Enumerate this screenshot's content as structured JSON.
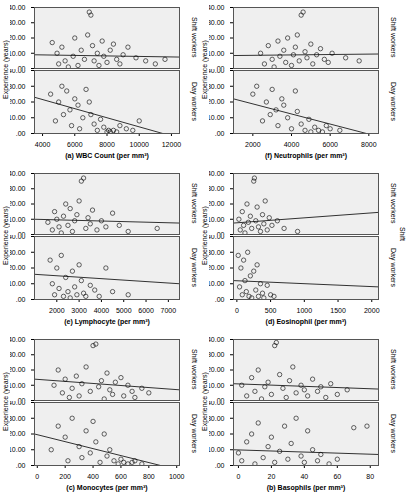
{
  "chart_data": [
    {
      "type": "scatter",
      "x_label": "(a) WBC Count (per mm³)",
      "y_label": "Experience (years)",
      "xlim": [
        3500,
        12500
      ],
      "xticks": [
        4000,
        6000,
        8000,
        10000,
        12000
      ],
      "ylim": [
        0,
        40
      ],
      "yticks": [
        {
          "value": 0,
          "label": ".00"
        },
        {
          "value": 10,
          "label": "10.00"
        },
        {
          "value": 20,
          "label": "20.00"
        },
        {
          "value": 30,
          "label": "30.00"
        },
        {
          "value": 40,
          "label": "40.00"
        }
      ],
      "color": "#000000",
      "marker": "circle",
      "series": [
        {
          "name": "Shift workers",
          "x": [
            4600,
            4900,
            5000,
            5200,
            5400,
            5600,
            5900,
            6000,
            6200,
            6400,
            6600,
            6800,
            6900,
            7000,
            7100,
            7200,
            7400,
            7500,
            7700,
            7800,
            8000,
            8200,
            8400,
            8600,
            8800,
            9000,
            9300,
            9800,
            10400,
            11000,
            11600
          ],
          "y": [
            17,
            10,
            3,
            14,
            5,
            1,
            8,
            20,
            2,
            12,
            6,
            22,
            37,
            35,
            15,
            5,
            10,
            2,
            18,
            8,
            4,
            12,
            16,
            6,
            3,
            9,
            14,
            7,
            5,
            3,
            6
          ],
          "fit_x": [
            3500,
            12500
          ],
          "fit_y": [
            9,
            7.5
          ]
        },
        {
          "name": "Day workers",
          "x": [
            4500,
            4800,
            5000,
            5200,
            5300,
            5500,
            5700,
            5800,
            6000,
            6200,
            6300,
            6500,
            6700,
            6900,
            7000,
            7200,
            7400,
            7600,
            7800,
            8000,
            8100,
            8200,
            8400,
            8600,
            8800,
            9200,
            9600,
            10000
          ],
          "y": [
            25,
            8,
            20,
            30,
            12,
            27,
            15,
            5,
            22,
            18,
            3,
            10,
            28,
            20,
            12,
            6,
            2,
            9,
            4,
            1,
            2,
            1,
            2,
            1,
            5,
            3,
            2,
            8
          ],
          "fit_x": [
            3500,
            12500
          ],
          "fit_y": [
            23,
            -3
          ]
        }
      ]
    },
    {
      "type": "scatter",
      "x_label": "(f) Neutrophils (per mm³)",
      "y_label": "Experience (years)",
      "xlim": [
        1000,
        8500
      ],
      "xticks": [
        2000,
        4000,
        6000,
        8000
      ],
      "ylim": [
        0,
        40
      ],
      "yticks": [
        {
          "value": 0,
          "label": ".00"
        },
        {
          "value": 10,
          "label": "10.00"
        },
        {
          "value": 20,
          "label": "20.00"
        },
        {
          "value": 30,
          "label": "30.00"
        },
        {
          "value": 40,
          "label": "40.00"
        }
      ],
      "color": "#000000",
      "marker": "circle",
      "series": [
        {
          "name": "Shift workers",
          "x": [
            2400,
            2600,
            2800,
            3000,
            3100,
            3300,
            3400,
            3600,
            3700,
            3800,
            4000,
            4100,
            4200,
            4300,
            4400,
            4500,
            4600,
            4700,
            4800,
            5000,
            5100,
            5300,
            5500,
            5700,
            5900,
            6100,
            6800,
            7500
          ],
          "y": [
            10,
            3,
            15,
            6,
            1,
            18,
            8,
            12,
            4,
            20,
            2,
            9,
            14,
            22,
            5,
            35,
            37,
            11,
            7,
            16,
            3,
            9,
            13,
            6,
            4,
            10,
            7,
            5
          ],
          "fit_x": [
            1000,
            8500
          ],
          "fit_y": [
            8.5,
            9.5
          ]
        },
        {
          "name": "Day workers",
          "x": [
            2000,
            2200,
            2500,
            2700,
            2900,
            3000,
            3200,
            3300,
            3500,
            3600,
            3800,
            4000,
            4200,
            4300,
            4500,
            4700,
            4900,
            5000,
            5200,
            5400,
            5600,
            5800,
            6000,
            6500
          ],
          "y": [
            25,
            30,
            8,
            20,
            12,
            28,
            15,
            5,
            22,
            18,
            10,
            3,
            27,
            14,
            6,
            2,
            9,
            1,
            4,
            2,
            1,
            5,
            3,
            2
          ],
          "fit_x": [
            1000,
            8500
          ],
          "fit_y": [
            22,
            -2
          ]
        }
      ]
    },
    {
      "type": "scatter",
      "x_label": "(e) Lymphocyte (per mm³)",
      "y_label": "Experience (years)",
      "xlim": [
        1000,
        7500
      ],
      "xticks": [
        2000,
        3000,
        4000,
        5000,
        6000,
        7000
      ],
      "ylim": [
        0,
        40
      ],
      "yticks": [
        {
          "value": 0,
          "label": ".00"
        },
        {
          "value": 10,
          "label": "10.00"
        },
        {
          "value": 20,
          "label": "20.00"
        },
        {
          "value": 30,
          "label": "30.00"
        },
        {
          "value": 40,
          "label": "40.00"
        }
      ],
      "color": "#000000",
      "marker": "circle",
      "series": [
        {
          "name": "Shift workers",
          "x": [
            1600,
            1800,
            1900,
            2000,
            2100,
            2200,
            2300,
            2400,
            2500,
            2600,
            2700,
            2800,
            2900,
            3000,
            3100,
            3200,
            3300,
            3400,
            3500,
            3600,
            3800,
            4000,
            4200,
            4500,
            4800,
            5200,
            6500
          ],
          "y": [
            8,
            3,
            15,
            10,
            5,
            1,
            12,
            20,
            6,
            17,
            2,
            9,
            13,
            22,
            35,
            37,
            4,
            11,
            7,
            16,
            3,
            9,
            5,
            14,
            6,
            2,
            4
          ],
          "fit_x": [
            1000,
            7500
          ],
          "fit_y": [
            10,
            7.5
          ]
        },
        {
          "name": "Day workers",
          "x": [
            1700,
            1800,
            1900,
            2000,
            2100,
            2200,
            2300,
            2400,
            2500,
            2600,
            2700,
            2800,
            2900,
            3000,
            3100,
            3200,
            3300,
            3500,
            3700,
            3900,
            4200,
            4500,
            5200
          ],
          "y": [
            25,
            10,
            3,
            20,
            7,
            28,
            2,
            14,
            5,
            1,
            18,
            8,
            3,
            22,
            12,
            4,
            2,
            9,
            6,
            2,
            20,
            5,
            3
          ],
          "fit_x": [
            1000,
            7500
          ],
          "fit_y": [
            16,
            10
          ]
        }
      ]
    },
    {
      "type": "scatter",
      "x_label": "(d) Eosinophil (per mm³)",
      "y_label": "Experience (years)",
      "facet_title": "Shift",
      "xlim": [
        -50,
        2100
      ],
      "xticks": [
        0,
        500,
        1000,
        1500,
        2000
      ],
      "ylim": [
        0,
        40
      ],
      "yticks": [
        {
          "value": 0,
          "label": ".00"
        },
        {
          "value": 10,
          "label": "10.00"
        },
        {
          "value": 20,
          "label": "20.00"
        },
        {
          "value": 30,
          "label": "30.00"
        },
        {
          "value": 40,
          "label": "40.00"
        }
      ],
      "color": "#000000",
      "marker": "circle",
      "series": [
        {
          "name": "Shift workers",
          "x": [
            30,
            50,
            80,
            100,
            120,
            150,
            170,
            200,
            220,
            250,
            260,
            280,
            300,
            320,
            350,
            380,
            400,
            420,
            450,
            480,
            520,
            600,
            700,
            900
          ],
          "y": [
            10,
            3,
            15,
            6,
            1,
            20,
            8,
            12,
            4,
            35,
            37,
            9,
            18,
            5,
            2,
            13,
            7,
            22,
            3,
            11,
            6,
            9,
            4,
            2
          ],
          "fit_x": [
            -50,
            2100
          ],
          "fit_y": [
            7.5,
            14.5
          ]
        },
        {
          "name": "Day workers",
          "x": [
            20,
            40,
            60,
            80,
            100,
            120,
            140,
            160,
            180,
            200,
            220,
            250,
            280,
            300,
            320,
            350,
            380,
            400,
            450,
            500,
            550
          ],
          "y": [
            28,
            8,
            20,
            3,
            25,
            12,
            5,
            30,
            2,
            15,
            1,
            18,
            6,
            22,
            2,
            10,
            4,
            1,
            9,
            3,
            2
          ],
          "fit_x": [
            -50,
            2100
          ],
          "fit_y": [
            12,
            8
          ]
        }
      ]
    },
    {
      "type": "scatter",
      "x_label": "(c) Monocytes (per mm³)",
      "y_label": "Experience (years)",
      "xlim": [
        -20,
        1020
      ],
      "xticks": [
        0,
        200,
        400,
        600,
        800,
        1000
      ],
      "ylim": [
        0,
        40
      ],
      "yticks": [
        {
          "value": 0,
          "label": ".00"
        },
        {
          "value": 10,
          "label": "10.00"
        },
        {
          "value": 20,
          "label": "20.00"
        },
        {
          "value": 30,
          "label": "30.00"
        },
        {
          "value": 40,
          "label": "40.00"
        }
      ],
      "color": "#000000",
      "marker": "circle",
      "series": [
        {
          "name": "Shift workers",
          "x": [
            120,
            150,
            180,
            200,
            230,
            250,
            280,
            300,
            320,
            350,
            380,
            400,
            420,
            440,
            460,
            480,
            500,
            520,
            540,
            560,
            600,
            620,
            650,
            680,
            700,
            750,
            800
          ],
          "y": [
            10,
            20,
            5,
            14,
            2,
            8,
            16,
            3,
            11,
            22,
            6,
            36,
            37,
            9,
            13,
            1,
            18,
            7,
            4,
            12,
            15,
            3,
            10,
            6,
            2,
            8,
            5
          ],
          "fit_x": [
            -20,
            1020
          ],
          "fit_y": [
            14,
            7
          ]
        },
        {
          "name": "Day workers",
          "x": [
            100,
            150,
            200,
            220,
            250,
            300,
            320,
            350,
            380,
            400,
            420,
            450,
            480,
            500,
            520,
            550,
            580,
            600,
            620,
            650,
            680,
            700,
            750
          ],
          "y": [
            10,
            25,
            18,
            3,
            30,
            12,
            5,
            22,
            8,
            28,
            15,
            2,
            20,
            6,
            10,
            3,
            1,
            4,
            2,
            1,
            2,
            3,
            1
          ],
          "fit_x": [
            -20,
            1020
          ],
          "fit_y": [
            20,
            -3
          ]
        }
      ]
    },
    {
      "type": "scatter",
      "x_label": "(b) Basophils (per mm³)",
      "y_label": "Experience (years)",
      "xlim": [
        -3,
        85
      ],
      "xticks": [
        0,
        20,
        40,
        60,
        80
      ],
      "ylim": [
        0,
        40
      ],
      "yticks": [
        {
          "value": 0,
          "label": ".00"
        },
        {
          "value": 10,
          "label": "10.00"
        },
        {
          "value": 20,
          "label": "20.00"
        },
        {
          "value": 30,
          "label": "30.00"
        },
        {
          "value": 40,
          "label": "40.00"
        }
      ],
      "color": "#000000",
      "marker": "circle",
      "series": [
        {
          "name": "Shift workers",
          "x": [
            2,
            5,
            8,
            10,
            12,
            14,
            16,
            18,
            20,
            22,
            23,
            25,
            27,
            29,
            31,
            33,
            35,
            38,
            40,
            42,
            45,
            48,
            50,
            53,
            56,
            60,
            66
          ],
          "y": [
            10,
            3,
            15,
            6,
            20,
            1,
            9,
            12,
            4,
            36,
            38,
            17,
            8,
            2,
            13,
            22,
            5,
            10,
            7,
            3,
            14,
            6,
            9,
            2,
            11,
            4,
            7
          ],
          "fit_x": [
            -3,
            85
          ],
          "fit_y": [
            11,
            7.5
          ]
        },
        {
          "name": "Day workers",
          "x": [
            0,
            2,
            5,
            8,
            10,
            12,
            15,
            18,
            20,
            22,
            25,
            28,
            30,
            32,
            35,
            38,
            40,
            42,
            45,
            48,
            50,
            55,
            60,
            70,
            78
          ],
          "y": [
            8,
            3,
            15,
            20,
            1,
            27,
            5,
            12,
            18,
            2,
            9,
            25,
            4,
            14,
            30,
            6,
            2,
            22,
            10,
            3,
            7,
            1,
            4,
            24,
            25
          ],
          "fit_x": [
            -3,
            85
          ],
          "fit_y": [
            10,
            7
          ]
        }
      ]
    }
  ]
}
